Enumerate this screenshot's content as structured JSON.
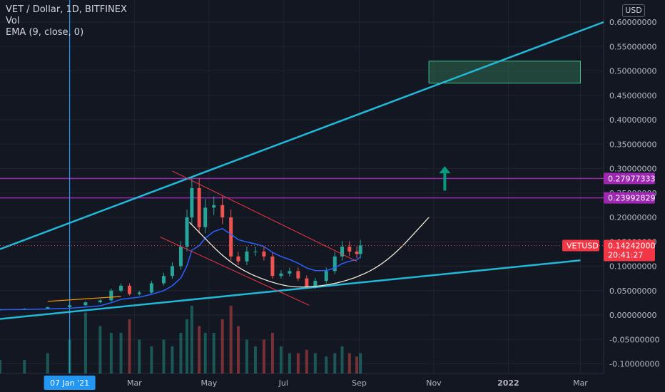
{
  "header": {
    "symbol_line": "VET / Dollar, 1D, BITFINEX",
    "indicator_vol": "Vol",
    "indicator_ema": "EMA (9, close, 0)",
    "currency_button": "USD"
  },
  "colors": {
    "background": "#131722",
    "grid": "#1f2430",
    "axis_text": "#b2b5be",
    "up_candle": "#26a69a",
    "down_candle": "#ef5350",
    "ema": "#2962ff",
    "trendline_cyan": "#22b8d8",
    "resistance_purple": "#9c27b0",
    "wedge_red": "#f23645",
    "cup_curve": "#fff3e0",
    "target_box": "#2e6b4e",
    "arrow": "#089981",
    "price_label": "#f23645",
    "date_marker": "#2196f3"
  },
  "chart_data": {
    "type": "candlestick",
    "symbol": "VETUSD",
    "y_axis": {
      "range": [
        -0.1,
        0.61
      ],
      "ticks": [
        "0.60000000",
        "0.55000000",
        "0.50000000",
        "0.45000000",
        "0.40000000",
        "0.35000000",
        "0.30000000",
        "0.25000000",
        "0.20000000",
        "0.15000000",
        "0.10000000",
        "0.05000000",
        "0.00000000",
        "-0.05000000",
        "-0.10000000"
      ]
    },
    "x_axis": {
      "labels": [
        {
          "label": "Mar",
          "date": "2021-03-01"
        },
        {
          "label": "May",
          "date": "2021-05-01"
        },
        {
          "label": "Jul",
          "date": "2021-07-01"
        },
        {
          "label": "Sep",
          "date": "2021-09-01"
        },
        {
          "label": "Nov",
          "date": "2021-11-01"
        },
        {
          "label": "2022",
          "date": "2022-01-01"
        },
        {
          "label": "Mar",
          "date": "2022-03-01"
        }
      ],
      "range": [
        "2020-11-11",
        "2022-03-20"
      ]
    },
    "price_series": [
      {
        "date": "2020-11-11",
        "value": 0.011
      },
      {
        "date": "2020-12-01",
        "value": 0.013
      },
      {
        "date": "2020-12-20",
        "value": 0.016
      },
      {
        "date": "2021-01-07",
        "value": 0.02
      },
      {
        "date": "2021-01-20",
        "value": 0.026
      },
      {
        "date": "2021-02-01",
        "value": 0.03
      },
      {
        "date": "2021-02-10",
        "value": 0.05
      },
      {
        "date": "2021-02-18",
        "value": 0.06
      },
      {
        "date": "2021-02-25",
        "value": 0.043
      },
      {
        "date": "2021-03-05",
        "value": 0.046
      },
      {
        "date": "2021-03-15",
        "value": 0.065
      },
      {
        "date": "2021-03-25",
        "value": 0.08
      },
      {
        "date": "2021-04-01",
        "value": 0.1
      },
      {
        "date": "2021-04-08",
        "value": 0.14
      },
      {
        "date": "2021-04-13",
        "value": 0.2
      },
      {
        "date": "2021-04-17",
        "value": 0.26
      },
      {
        "date": "2021-04-23",
        "value": 0.18
      },
      {
        "date": "2021-04-28",
        "value": 0.22
      },
      {
        "date": "2021-05-05",
        "value": 0.225
      },
      {
        "date": "2021-05-12",
        "value": 0.2
      },
      {
        "date": "2021-05-19",
        "value": 0.12
      },
      {
        "date": "2021-05-25",
        "value": 0.11
      },
      {
        "date": "2021-06-01",
        "value": 0.13
      },
      {
        "date": "2021-06-08",
        "value": 0.13
      },
      {
        "date": "2021-06-15",
        "value": 0.12
      },
      {
        "date": "2021-06-22",
        "value": 0.08
      },
      {
        "date": "2021-06-29",
        "value": 0.085
      },
      {
        "date": "2021-07-06",
        "value": 0.09
      },
      {
        "date": "2021-07-13",
        "value": 0.075
      },
      {
        "date": "2021-07-20",
        "value": 0.058
      },
      {
        "date": "2021-07-27",
        "value": 0.07
      },
      {
        "date": "2021-08-05",
        "value": 0.09
      },
      {
        "date": "2021-08-12",
        "value": 0.12
      },
      {
        "date": "2021-08-18",
        "value": 0.14
      },
      {
        "date": "2021-08-24",
        "value": 0.13
      },
      {
        "date": "2021-08-30",
        "value": 0.125
      },
      {
        "date": "2021-09-02",
        "value": 0.14242
      }
    ],
    "volume": [
      0.2,
      0.2,
      0.3,
      0.5,
      0.9,
      0.7,
      0.6,
      0.6,
      0.8,
      0.5,
      0.4,
      0.5,
      0.4,
      0.6,
      0.8,
      1.0,
      0.7,
      0.6,
      0.6,
      0.8,
      1.0,
      0.7,
      0.5,
      0.4,
      0.5,
      0.6,
      0.4,
      0.3,
      0.3,
      0.35,
      0.3,
      0.25,
      0.3,
      0.4,
      0.3,
      0.25,
      0.3
    ],
    "drawings": {
      "horizontal_levels": [
        0.27977333,
        0.23992829
      ],
      "current_price": 0.14242,
      "upper_trendline": [
        {
          "date": "2020-11-11",
          "value": 0.135
        },
        {
          "date": "2022-03-20",
          "value": 0.6
        }
      ],
      "lower_trendline": [
        {
          "date": "2020-11-11",
          "value": -0.008
        },
        {
          "date": "2022-03-01",
          "value": 0.112
        }
      ],
      "wedge_upper": [
        {
          "date": "2021-04-01",
          "value": 0.295
        },
        {
          "date": "2021-08-30",
          "value": 0.11
        }
      ],
      "wedge_lower": [
        {
          "date": "2021-03-22",
          "value": 0.16
        },
        {
          "date": "2021-07-22",
          "value": 0.02
        }
      ],
      "entry_segment": [
        {
          "date": "2020-12-20",
          "value": 0.028
        },
        {
          "date": "2021-02-18",
          "value": 0.038
        }
      ],
      "cup_curve": [
        {
          "date": "2021-04-15",
          "value": 0.19
        },
        {
          "date": "2021-05-20",
          "value": 0.1
        },
        {
          "date": "2021-06-25",
          "value": 0.062
        },
        {
          "date": "2021-07-20",
          "value": 0.055
        },
        {
          "date": "2021-08-25",
          "value": 0.07
        },
        {
          "date": "2021-09-25",
          "value": 0.11
        },
        {
          "date": "2021-10-28",
          "value": 0.2
        }
      ],
      "target_zone": {
        "from": "2021-10-28",
        "to": "2022-03-01",
        "low": 0.475,
        "high": 0.52
      },
      "arrow": {
        "date": "2021-11-10",
        "from": 0.255,
        "to": 0.305
      },
      "date_marker": "2021-01-07"
    },
    "labels": {
      "level_1": "0.27977333",
      "level_2": "0.23992829",
      "price_symbol": "VETUSD",
      "price_value": "0.14242000",
      "countdown": "20:41:27",
      "date_marker": "07 Jan '21"
    },
    "grid": true
  }
}
